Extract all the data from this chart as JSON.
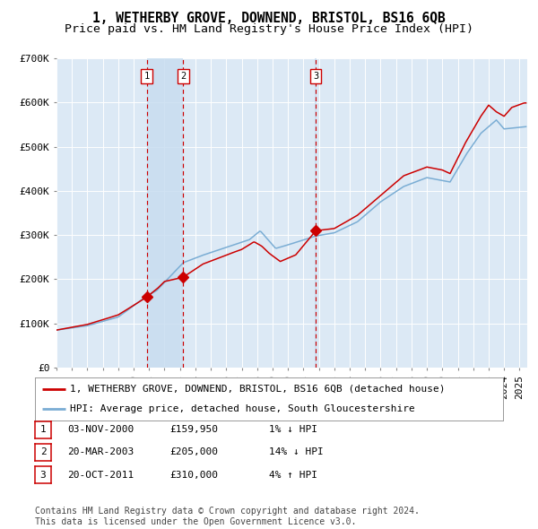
{
  "title": "1, WETHERBY GROVE, DOWNEND, BRISTOL, BS16 6QB",
  "subtitle": "Price paid vs. HM Land Registry's House Price Index (HPI)",
  "ylim": [
    0,
    700000
  ],
  "yticks": [
    0,
    100000,
    200000,
    300000,
    400000,
    500000,
    600000,
    700000
  ],
  "ytick_labels": [
    "£0",
    "£100K",
    "£200K",
    "£300K",
    "£400K",
    "£500K",
    "£600K",
    "£700K"
  ],
  "xlim_start": 1995.0,
  "xlim_end": 2025.5,
  "plot_bg_color": "#dce9f5",
  "grid_color": "#ffffff",
  "sale_color": "#cc0000",
  "hpi_color": "#7aadd4",
  "sale_dates": [
    2000.84,
    2003.22,
    2011.8
  ],
  "sale_prices": [
    159950,
    205000,
    310000
  ],
  "sale_labels": [
    "1",
    "2",
    "3"
  ],
  "legend_sale_label": "1, WETHERBY GROVE, DOWNEND, BRISTOL, BS16 6QB (detached house)",
  "legend_hpi_label": "HPI: Average price, detached house, South Gloucestershire",
  "table_rows": [
    [
      "1",
      "03-NOV-2000",
      "£159,950",
      "1% ↓ HPI"
    ],
    [
      "2",
      "20-MAR-2003",
      "£205,000",
      "14% ↓ HPI"
    ],
    [
      "3",
      "20-OCT-2011",
      "£310,000",
      "4% ↑ HPI"
    ]
  ],
  "footnote": "Contains HM Land Registry data © Crown copyright and database right 2024.\nThis data is licensed under the Open Government Licence v3.0.",
  "title_fontsize": 10.5,
  "subtitle_fontsize": 9.5,
  "tick_fontsize": 8,
  "legend_fontsize": 8,
  "table_fontsize": 8,
  "footnote_fontsize": 7
}
